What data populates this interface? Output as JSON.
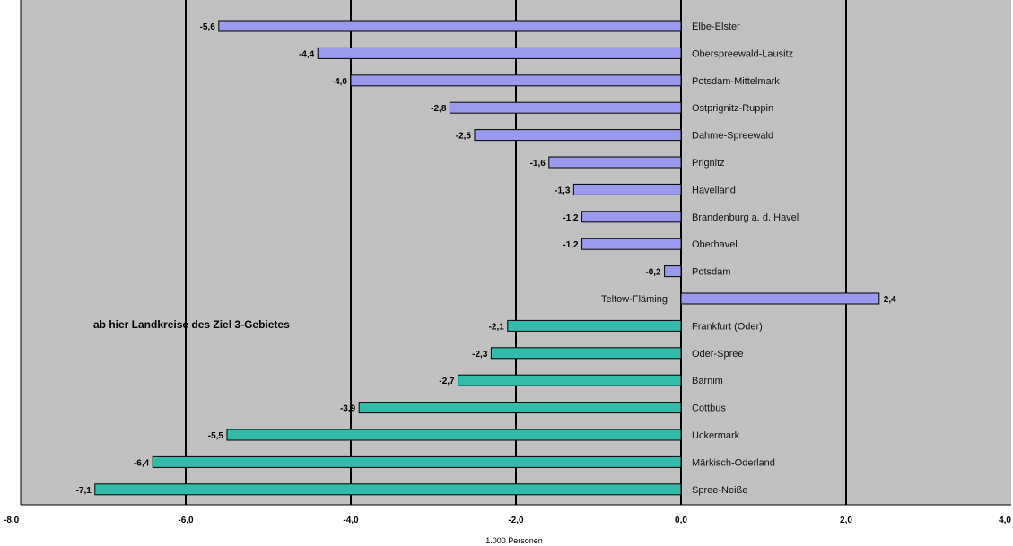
{
  "chart_data": {
    "type": "bar",
    "orientation": "horizontal",
    "categories": [
      "Elbe-Elster",
      "Oberspreewald-Lausitz",
      "Potsdam-Mittelmark",
      "Ostprignitz-Ruppin",
      "Dahme-Spreewald",
      "Prignitz",
      "Havelland",
      "Brandenburg a. d. Havel",
      "Oberhavel",
      "Potsdam",
      "Teltow-Fläming",
      "Frankfurt (Oder)",
      "Oder-Spree",
      "Barnim",
      "Cottbus",
      "Uckermark",
      "Märkisch-Oderland",
      "Spree-Neiße"
    ],
    "values": [
      -5.6,
      -4.4,
      -4.0,
      -2.8,
      -2.5,
      -1.6,
      -1.3,
      -1.2,
      -1.2,
      -0.2,
      2.4,
      -2.1,
      -2.3,
      -2.7,
      -3.9,
      -5.5,
      -6.4,
      -7.1
    ],
    "value_labels": [
      "-5,6",
      "-4,4",
      "-4,0",
      "-2,8",
      "-2,5",
      "-1,6",
      "-1,3",
      "-1,2",
      "-1,2",
      "-0,2",
      "2,4",
      "-2,1",
      "-2,3",
      "-2,7",
      "-3,9",
      "-5,5",
      "-6,4",
      "-7,1"
    ],
    "groups": [
      "a",
      "a",
      "a",
      "a",
      "a",
      "a",
      "a",
      "a",
      "a",
      "a",
      "a",
      "b",
      "b",
      "b",
      "b",
      "b",
      "b",
      "b"
    ],
    "group_colors": {
      "a": "#9999ee",
      "b": "#33bbaa"
    },
    "xlim": [
      -8.0,
      4.0
    ],
    "xticks": [
      -8.0,
      -6.0,
      -4.0,
      -2.0,
      0.0,
      2.0,
      4.0
    ],
    "xtick_labels": [
      "-8,0",
      "-6,0",
      "-4,0",
      "-2,0",
      "0,0",
      "2,0",
      "4,0"
    ],
    "xlabel": "1.000 Personen",
    "annotation": "ab hier Landkreise des Ziel 3-Gebietes",
    "grid": true,
    "plot_background": "#c0c0c0"
  }
}
